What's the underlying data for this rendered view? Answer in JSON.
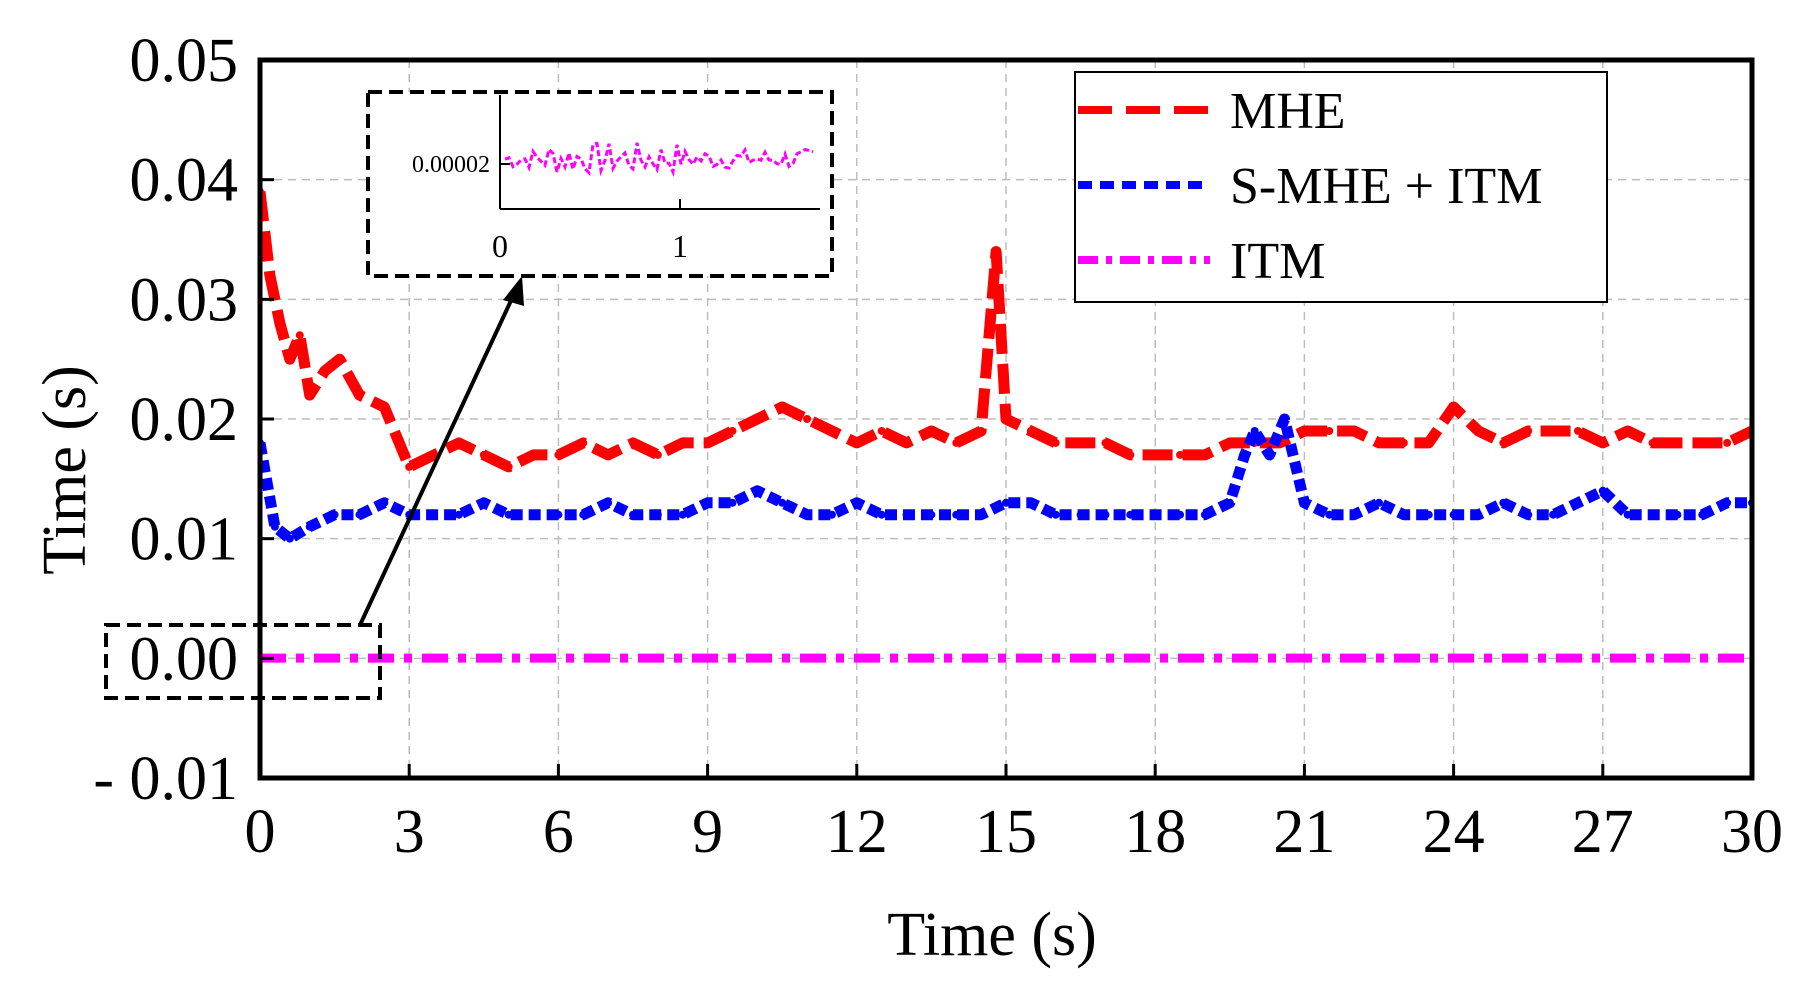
{
  "chart_data": {
    "type": "line",
    "title": "",
    "xlabel": "Time (s)",
    "ylabel": "Time (s)",
    "xlim": [
      0,
      30
    ],
    "ylim": [
      -0.01,
      0.05
    ],
    "xticks": [
      0,
      3,
      6,
      9,
      12,
      15,
      18,
      21,
      24,
      27,
      30
    ],
    "xtick_labels": [
      "0",
      "3",
      "6",
      "9",
      "12",
      "15",
      "18",
      "21",
      "24",
      "27",
      "30"
    ],
    "yticks": [
      -0.01,
      0.0,
      0.01,
      0.02,
      0.03,
      0.04,
      0.05
    ],
    "ytick_labels": [
      "- 0.01",
      "0.00",
      "0.01",
      "0.02",
      "0.03",
      "0.04",
      "0.05"
    ],
    "grid": true,
    "legend_position": "top-right",
    "series": [
      {
        "name": "MHE",
        "color": "#ff0000",
        "style": "dash",
        "x": [
          0,
          0.2,
          0.4,
          0.6,
          0.8,
          1.0,
          1.3,
          1.6,
          2.0,
          2.5,
          3.0,
          3.5,
          4.0,
          4.5,
          5.0,
          5.5,
          6.0,
          6.5,
          7.0,
          7.5,
          8.0,
          8.5,
          9.0,
          9.5,
          10.0,
          10.5,
          11.0,
          11.5,
          12.0,
          12.5,
          13.0,
          13.5,
          14.0,
          14.5,
          14.8,
          15.0,
          15.5,
          16.0,
          16.5,
          17.0,
          17.5,
          18.0,
          18.5,
          19.0,
          19.5,
          20.0,
          20.5,
          21.0,
          21.5,
          22.0,
          22.5,
          23.0,
          23.5,
          24.0,
          24.5,
          25.0,
          25.5,
          26.0,
          26.5,
          27.0,
          27.5,
          28.0,
          28.5,
          29.0,
          29.5,
          30.0
        ],
        "y": [
          0.039,
          0.032,
          0.028,
          0.025,
          0.027,
          0.022,
          0.024,
          0.025,
          0.022,
          0.021,
          0.016,
          0.017,
          0.018,
          0.017,
          0.016,
          0.017,
          0.017,
          0.018,
          0.017,
          0.018,
          0.017,
          0.018,
          0.018,
          0.019,
          0.02,
          0.021,
          0.02,
          0.019,
          0.018,
          0.019,
          0.018,
          0.019,
          0.018,
          0.019,
          0.034,
          0.02,
          0.019,
          0.018,
          0.018,
          0.018,
          0.017,
          0.017,
          0.017,
          0.017,
          0.018,
          0.018,
          0.018,
          0.019,
          0.019,
          0.019,
          0.018,
          0.018,
          0.018,
          0.021,
          0.019,
          0.018,
          0.019,
          0.019,
          0.019,
          0.018,
          0.019,
          0.018,
          0.018,
          0.018,
          0.018,
          0.019
        ]
      },
      {
        "name": "S-MHE + ITM",
        "color": "#0000ff",
        "style": "short-dash",
        "x": [
          0,
          0.3,
          0.6,
          1.0,
          1.5,
          2.0,
          2.5,
          3.0,
          3.5,
          4.0,
          4.5,
          5.0,
          5.5,
          6.0,
          6.5,
          7.0,
          7.5,
          8.0,
          8.5,
          9.0,
          9.5,
          10.0,
          10.5,
          11.0,
          11.5,
          12.0,
          12.5,
          13.0,
          13.5,
          14.0,
          14.5,
          15.0,
          15.5,
          16.0,
          16.5,
          17.0,
          17.5,
          18.0,
          18.5,
          19.0,
          19.5,
          19.8,
          20.0,
          20.3,
          20.6,
          21.0,
          21.5,
          22.0,
          22.5,
          23.0,
          23.5,
          24.0,
          24.5,
          25.0,
          25.5,
          26.0,
          26.5,
          27.0,
          27.5,
          28.0,
          28.5,
          29.0,
          29.5,
          30.0
        ],
        "y": [
          0.018,
          0.011,
          0.01,
          0.011,
          0.012,
          0.012,
          0.013,
          0.012,
          0.012,
          0.012,
          0.013,
          0.012,
          0.012,
          0.012,
          0.012,
          0.013,
          0.012,
          0.012,
          0.012,
          0.013,
          0.013,
          0.014,
          0.013,
          0.012,
          0.012,
          0.013,
          0.012,
          0.012,
          0.012,
          0.012,
          0.012,
          0.013,
          0.013,
          0.012,
          0.012,
          0.012,
          0.012,
          0.012,
          0.012,
          0.012,
          0.013,
          0.017,
          0.019,
          0.017,
          0.02,
          0.013,
          0.012,
          0.012,
          0.013,
          0.012,
          0.012,
          0.012,
          0.012,
          0.013,
          0.012,
          0.012,
          0.013,
          0.014,
          0.012,
          0.012,
          0.012,
          0.012,
          0.013,
          0.013
        ]
      },
      {
        "name": "ITM",
        "color": "#ff00ff",
        "style": "dash-dot",
        "x": [
          0,
          30
        ],
        "y": [
          2e-05,
          2e-05
        ]
      }
    ],
    "inset": {
      "ytick_label": "0.00002",
      "xtick_labels": [
        "0",
        "1"
      ]
    }
  }
}
